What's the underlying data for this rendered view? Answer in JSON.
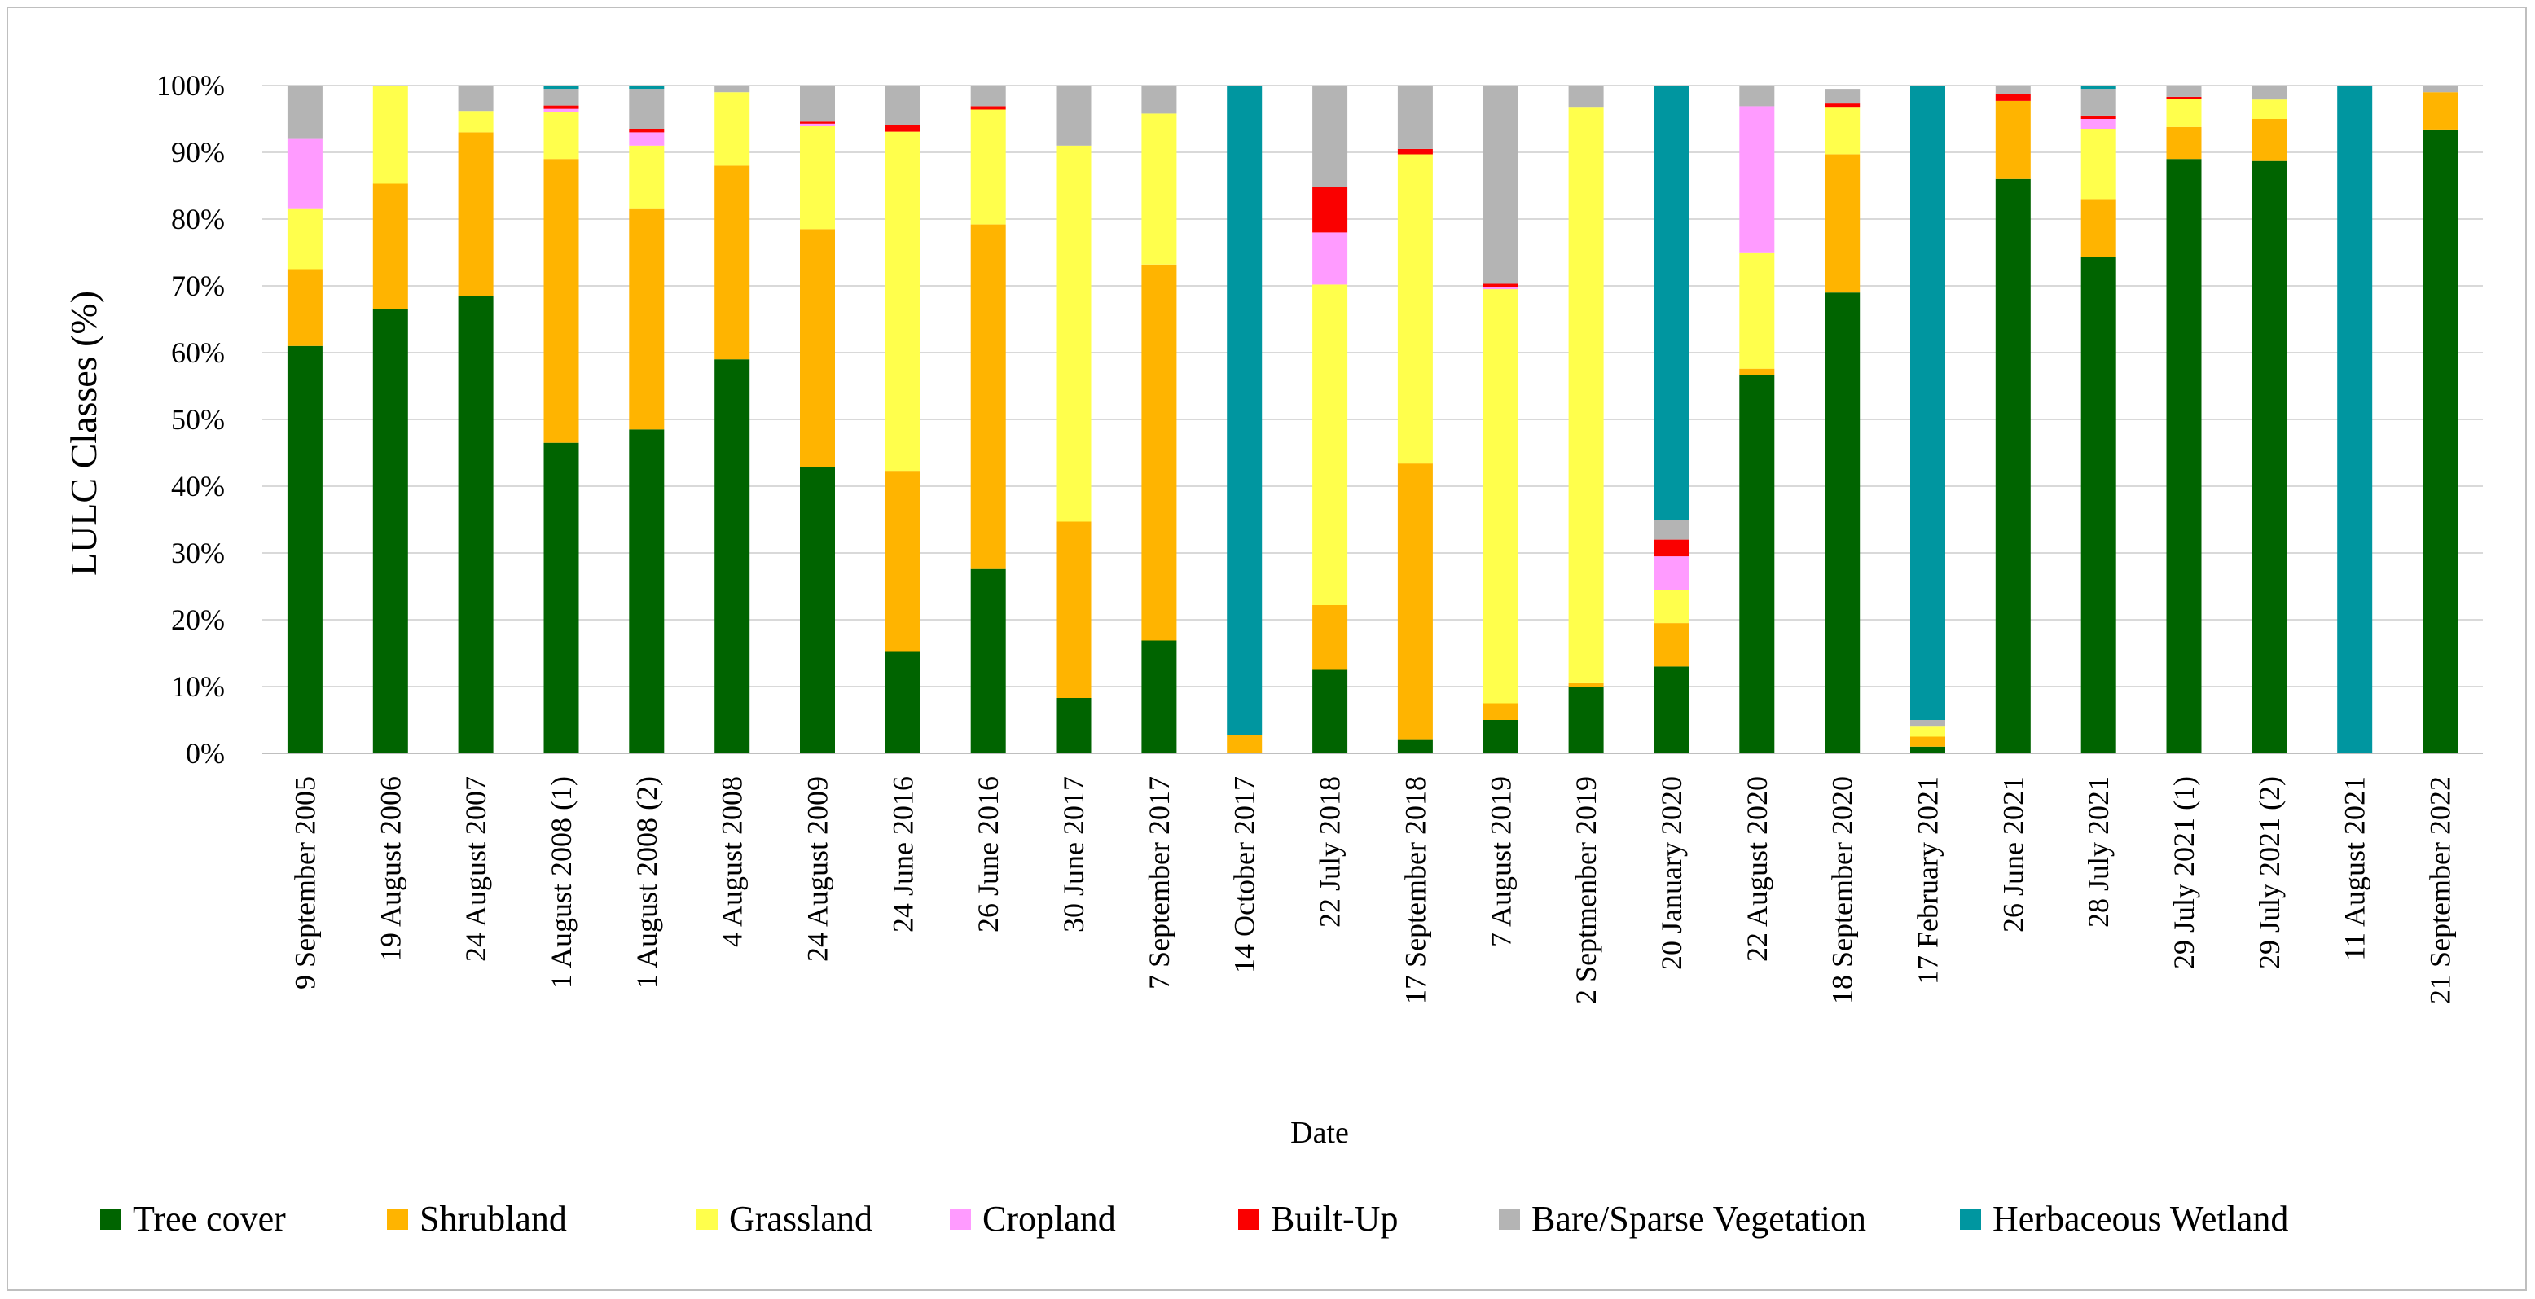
{
  "chart_data": {
    "type": "bar",
    "stacked": true,
    "title": "",
    "xlabel": "Date",
    "ylabel": "LULC Classes (%)",
    "ylim": [
      0,
      100
    ],
    "yticks": [
      "0%",
      "10%",
      "20%",
      "30%",
      "40%",
      "50%",
      "60%",
      "70%",
      "80%",
      "90%",
      "100%"
    ],
    "grid": true,
    "legend_position": "bottom",
    "categories": [
      "9 September 2005",
      "19 August 2006",
      "24 August 2007",
      "1 August 2008 (1)",
      "1 August 2008 (2)",
      "4 August 2008",
      "24 August 2009",
      "24 June 2016",
      "26 June 2016",
      "30 June 2017",
      "7 September 2017",
      "14 October 2017",
      "22 July 2018",
      "17 September 2018",
      "7 August 2019",
      "2 Septmenber 2019",
      "20 January 2020",
      "22 August 2020",
      "18 September 2020",
      "17 February 2021",
      "26 June 2021",
      "28 July 2021",
      "29 July 2021 (1)",
      "29 July 2021 (2)",
      "11 August 2021",
      "21 September 2022"
    ],
    "series": [
      {
        "name": "Tree cover",
        "color": "#006400",
        "values": [
          61,
          66.5,
          68.5,
          46.5,
          48.5,
          59,
          42.8,
          15.3,
          27.6,
          8.3,
          16.9,
          0,
          12.5,
          2,
          5,
          10,
          13,
          56.6,
          69,
          1,
          86,
          74.3,
          89,
          88.7,
          0,
          93.3
        ]
      },
      {
        "name": "Shrubland",
        "color": "#ffb400",
        "values": [
          11.5,
          18.8,
          24.5,
          42.5,
          33,
          29,
          35.7,
          27,
          51.6,
          26.4,
          56.3,
          2.8,
          9.7,
          41.4,
          2.5,
          0.5,
          6.5,
          1,
          20.7,
          1.5,
          11.7,
          8.7,
          4.8,
          6.3,
          0,
          5.7
        ]
      },
      {
        "name": "Grassland",
        "color": "#ffff4c",
        "values": [
          9,
          14.7,
          3.2,
          7,
          9.5,
          11,
          15.4,
          50.8,
          17.2,
          56.3,
          22.6,
          0,
          48,
          46.3,
          62,
          86.3,
          5,
          17.3,
          7.1,
          1.5,
          0,
          10.5,
          4.2,
          2.9,
          0,
          0
        ]
      },
      {
        "name": "Cropland",
        "color": "#ff9bff",
        "values": [
          10.5,
          0,
          0,
          0.5,
          2,
          0,
          0.4,
          0,
          0,
          0,
          0,
          0,
          7.8,
          0,
          0.3,
          0,
          5,
          22,
          0,
          0,
          0,
          1.5,
          0,
          0,
          0,
          0
        ]
      },
      {
        "name": "Built-Up",
        "color": "#fa0000",
        "values": [
          0,
          0,
          0,
          0.5,
          0.5,
          0,
          0.3,
          1,
          0.5,
          0,
          0,
          0,
          6.8,
          0.8,
          0.5,
          0,
          2.5,
          0,
          0.5,
          0,
          1,
          0.5,
          0.3,
          0,
          0,
          0
        ]
      },
      {
        "name": "Bare/Sparse Vegetation",
        "color": "#b4b4b4",
        "values": [
          8,
          0,
          3.8,
          2.5,
          6,
          1,
          5.4,
          5.9,
          3.1,
          9,
          4.2,
          0,
          15.2,
          9.5,
          29.7,
          3.2,
          3,
          3.1,
          2.2,
          1,
          1.3,
          4,
          1.7,
          2.1,
          0,
          1
        ]
      },
      {
        "name": "Herbaceous Wetland",
        "color": "#0096a0",
        "values": [
          0,
          0,
          0,
          0.5,
          0.5,
          0,
          0,
          0,
          0,
          0,
          0,
          97.2,
          0,
          0,
          0,
          0,
          65,
          0,
          0,
          95,
          0,
          0.5,
          0,
          0,
          100,
          0
        ]
      }
    ]
  }
}
